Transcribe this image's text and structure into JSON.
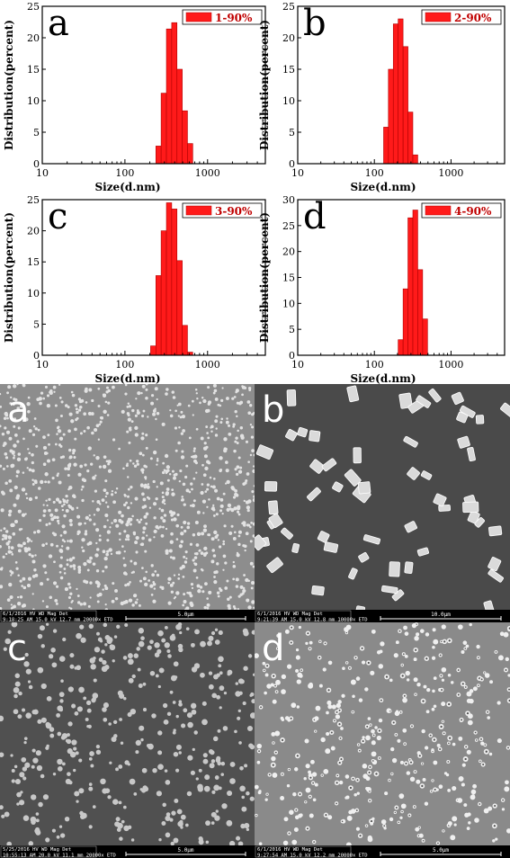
{
  "chart_data": [
    {
      "type": "bar",
      "panel_label": "a",
      "legend": "1-90%",
      "xlabel": "Size(d.nm)",
      "ylabel": "Distribution(percent)",
      "x_scale": "log",
      "xlim": [
        10,
        5000
      ],
      "ylim": [
        0,
        25
      ],
      "yticks": [
        0,
        5,
        10,
        15,
        20,
        25
      ],
      "xticks": [
        10,
        100,
        1000
      ],
      "bins": [
        255,
        295,
        342,
        396,
        459,
        531,
        615
      ],
      "values": [
        2.8,
        11.2,
        21.4,
        22.4,
        15.0,
        8.4,
        3.2
      ]
    },
    {
      "type": "bar",
      "panel_label": "b",
      "legend": "2-90%",
      "xlabel": "Size(d.nm)",
      "ylabel": "Distribution(percent)",
      "x_scale": "log",
      "xlim": [
        10,
        5000
      ],
      "ylim": [
        0,
        25
      ],
      "yticks": [
        0,
        5,
        10,
        15,
        20,
        25
      ],
      "xticks": [
        10,
        100,
        1000
      ],
      "bins": [
        142,
        164,
        190,
        220,
        255,
        295,
        342
      ],
      "values": [
        5.8,
        15.0,
        22.2,
        23.0,
        18.6,
        8.2,
        1.4
      ]
    },
    {
      "type": "bar",
      "panel_label": "c",
      "legend": "3-90%",
      "xlabel": "Size(d.nm)",
      "ylabel": "Distribution(percent)",
      "x_scale": "log",
      "xlim": [
        10,
        5000
      ],
      "ylim": [
        0,
        25
      ],
      "yticks": [
        0,
        5,
        10,
        15,
        20,
        25
      ],
      "xticks": [
        10,
        100,
        1000
      ],
      "bins": [
        220,
        255,
        295,
        342,
        396,
        459,
        531,
        615
      ],
      "values": [
        1.5,
        12.8,
        20.0,
        24.5,
        23.5,
        15.2,
        4.8,
        0.5
      ]
    },
    {
      "type": "bar",
      "panel_label": "d",
      "legend": "4-90%",
      "xlabel": "Size(d.nm)",
      "ylabel": "Distribution(percent)",
      "x_scale": "log",
      "xlim": [
        10,
        5000
      ],
      "ylim": [
        0,
        30
      ],
      "yticks": [
        0,
        5,
        10,
        15,
        20,
        25,
        30
      ],
      "xticks": [
        10,
        100,
        1000
      ],
      "bins": [
        220,
        255,
        295,
        342,
        396,
        459
      ],
      "values": [
        3.0,
        12.8,
        26.5,
        28.0,
        16.5,
        7.0
      ]
    }
  ],
  "sem": [
    {
      "label": "a",
      "info_line1": "6/1/2016   HV     WD     Mag    Det",
      "info_line2": "9:18:25 AM 15.0 kV 12.7 mm 20000x ETD",
      "scale": "5.0µm",
      "bg": "#8d8d8d",
      "dots": "#e2e2e2",
      "density": 1100,
      "seed": 11,
      "kind": "dense"
    },
    {
      "label": "b",
      "info_line1": "6/1/2016   HV     WD     Mag    Det",
      "info_line2": "9:21:39 AM 15.0 kV 12.8 mm 10000x ETD",
      "scale": "10.0µm",
      "bg": "#4a4a4a",
      "dots": "#dadada",
      "density": 60,
      "seed": 23,
      "kind": "crystals"
    },
    {
      "label": "c",
      "info_line1": "5/25/2016  HV     WD     Mag    Det",
      "info_line2": "10:55:13 AM 20.0 kV 11.1 mm 20000x ETD",
      "scale": "5.0µm",
      "bg": "#505050",
      "dots": "#c8c8c8",
      "density": 420,
      "seed": 37,
      "kind": "sparse"
    },
    {
      "label": "d",
      "info_line1": "6/1/2016   HV     WD     Mag    Det",
      "info_line2": "9:27:54 AM 15.0 kV 12.2 mm 20000x ETD",
      "scale": "5.0µm",
      "bg": "#8a8a8a",
      "dots": "#efefef",
      "density": 430,
      "seed": 53,
      "kind": "rings"
    }
  ],
  "colors": {
    "bar": "#ff1a1a",
    "bar_edge": "#b00000",
    "legend_swatch": "#ff1a1a"
  }
}
